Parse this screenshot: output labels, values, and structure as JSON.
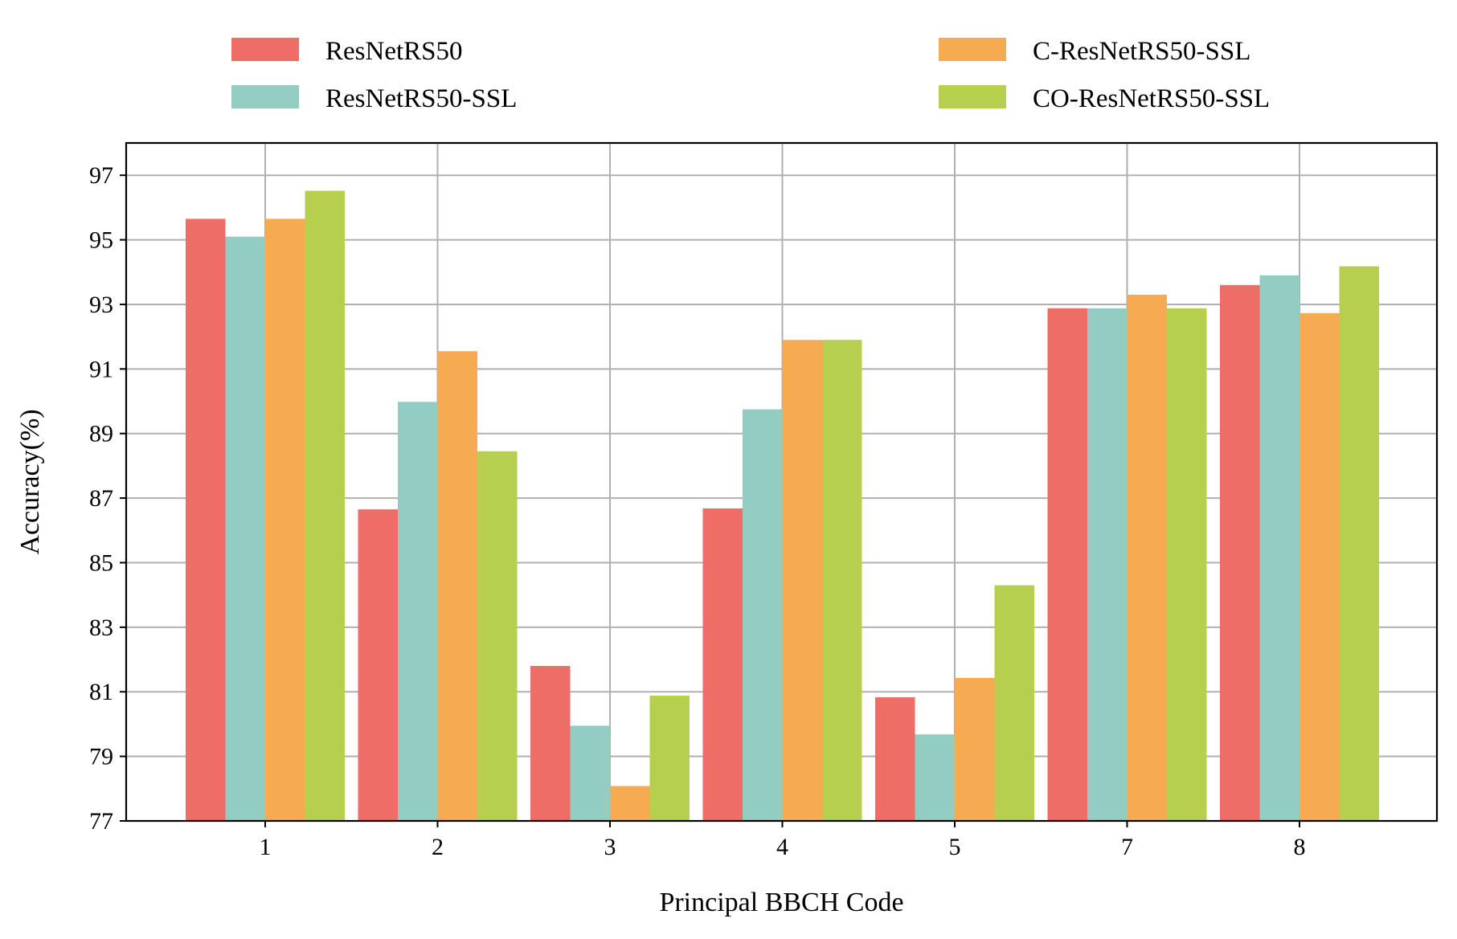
{
  "chart_data": {
    "type": "bar",
    "title": "",
    "xlabel": "Principal BBCH Code",
    "ylabel": "Accuracy(%)",
    "categories": [
      "1",
      "2",
      "3",
      "4",
      "5",
      "7",
      "8"
    ],
    "ylim": [
      77,
      98
    ],
    "yticks": [
      77,
      79,
      81,
      83,
      85,
      87,
      89,
      91,
      93,
      95,
      97
    ],
    "grid": true,
    "legend_position": "top",
    "series": [
      {
        "name": "ResNetRS50",
        "color": "#ee6e67",
        "values": [
          95.65,
          86.65,
          81.8,
          86.68,
          80.83,
          92.88,
          93.6
        ]
      },
      {
        "name": "ResNetRS50-SSL",
        "color": "#93ccc1",
        "values": [
          95.1,
          89.98,
          79.95,
          89.75,
          79.68,
          92.88,
          93.9
        ]
      },
      {
        "name": "C-ResNetRS50-SSL",
        "color": "#f6aa52",
        "values": [
          95.65,
          91.55,
          78.08,
          91.9,
          81.43,
          93.3,
          92.73
        ]
      },
      {
        "name": "CO-ResNetRS50-SSL",
        "color": "#b6cf4f",
        "values": [
          96.52,
          88.45,
          80.88,
          91.9,
          84.3,
          92.88,
          94.18
        ]
      }
    ]
  }
}
